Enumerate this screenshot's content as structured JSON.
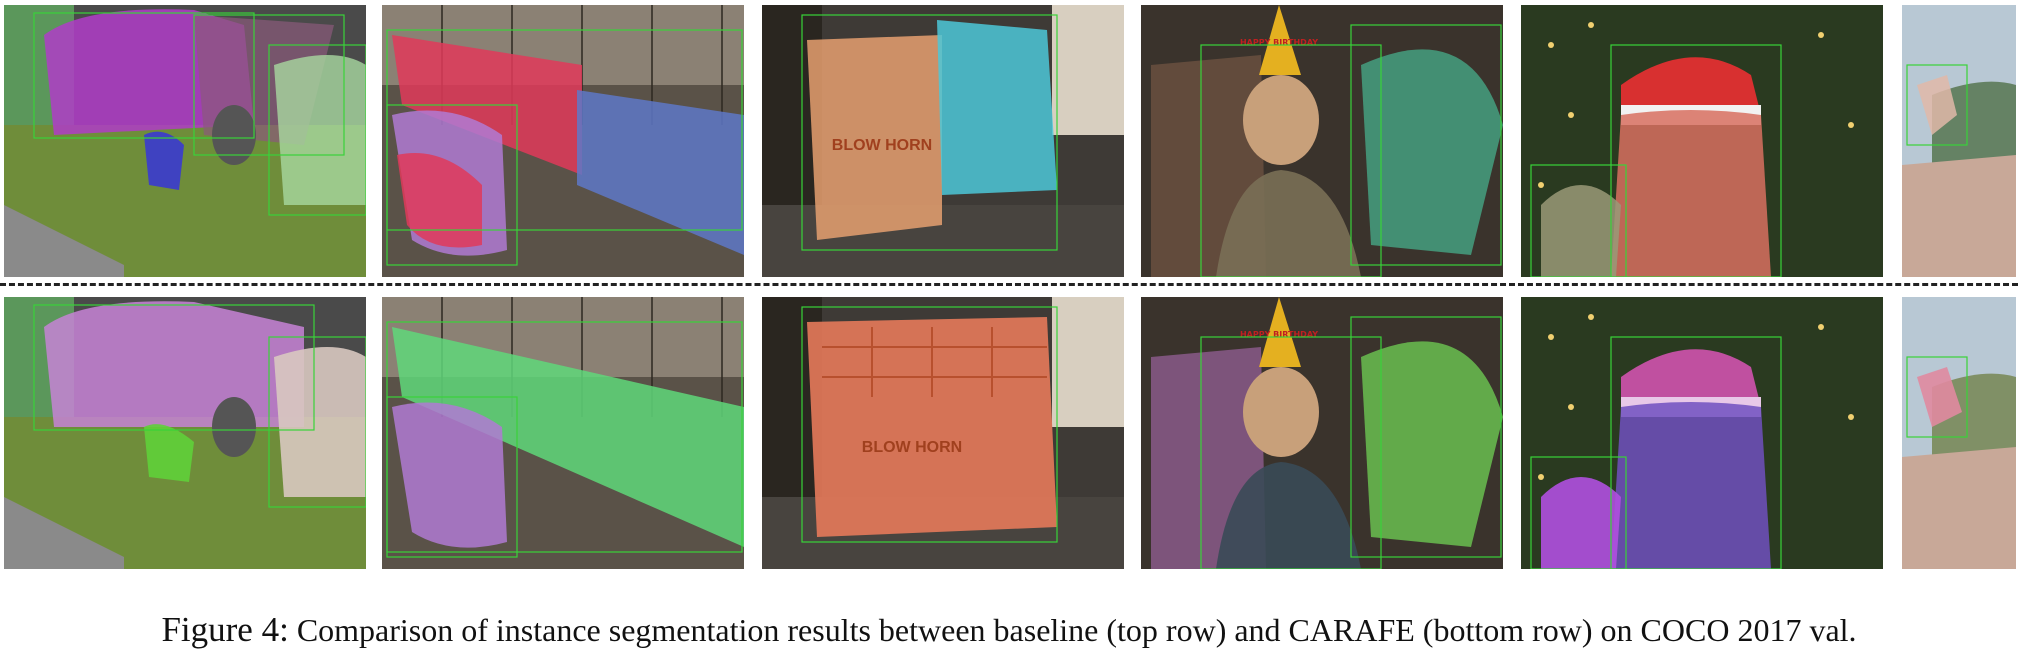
{
  "rows": [
    {
      "name": "baseline (top row)"
    },
    {
      "name": "CARAFE (bottom row)"
    }
  ],
  "scenes": [
    "cars-and-cat",
    "freight-train",
    "truck",
    "boy-birthday-hat",
    "santa-hat-man-dog",
    "skateboarder"
  ],
  "scene_text": {
    "truck_sign": "BLOW HORN",
    "hat_text": "HAPPY BIRTHDAY"
  },
  "colors": {
    "green_box": "#39d339",
    "baseline_car": "#b03cc8",
    "carafe_car": "#c783d6",
    "baseline_cat": "#3a3ad0",
    "carafe_cat": "#5fd03a",
    "train_red": "#e0395a",
    "train_blue": "#5e78c8",
    "train_green": "#5fd87a",
    "train_violet": "#b07ad4",
    "truck_orange": "#e67a5a",
    "truck_cyan": "#4cc8d8"
  },
  "caption": {
    "label": "Figure 4:",
    "text": "Comparison of instance segmentation results between baseline (top row) and CARAFE  (bottom row) on COCO 2017 val."
  }
}
